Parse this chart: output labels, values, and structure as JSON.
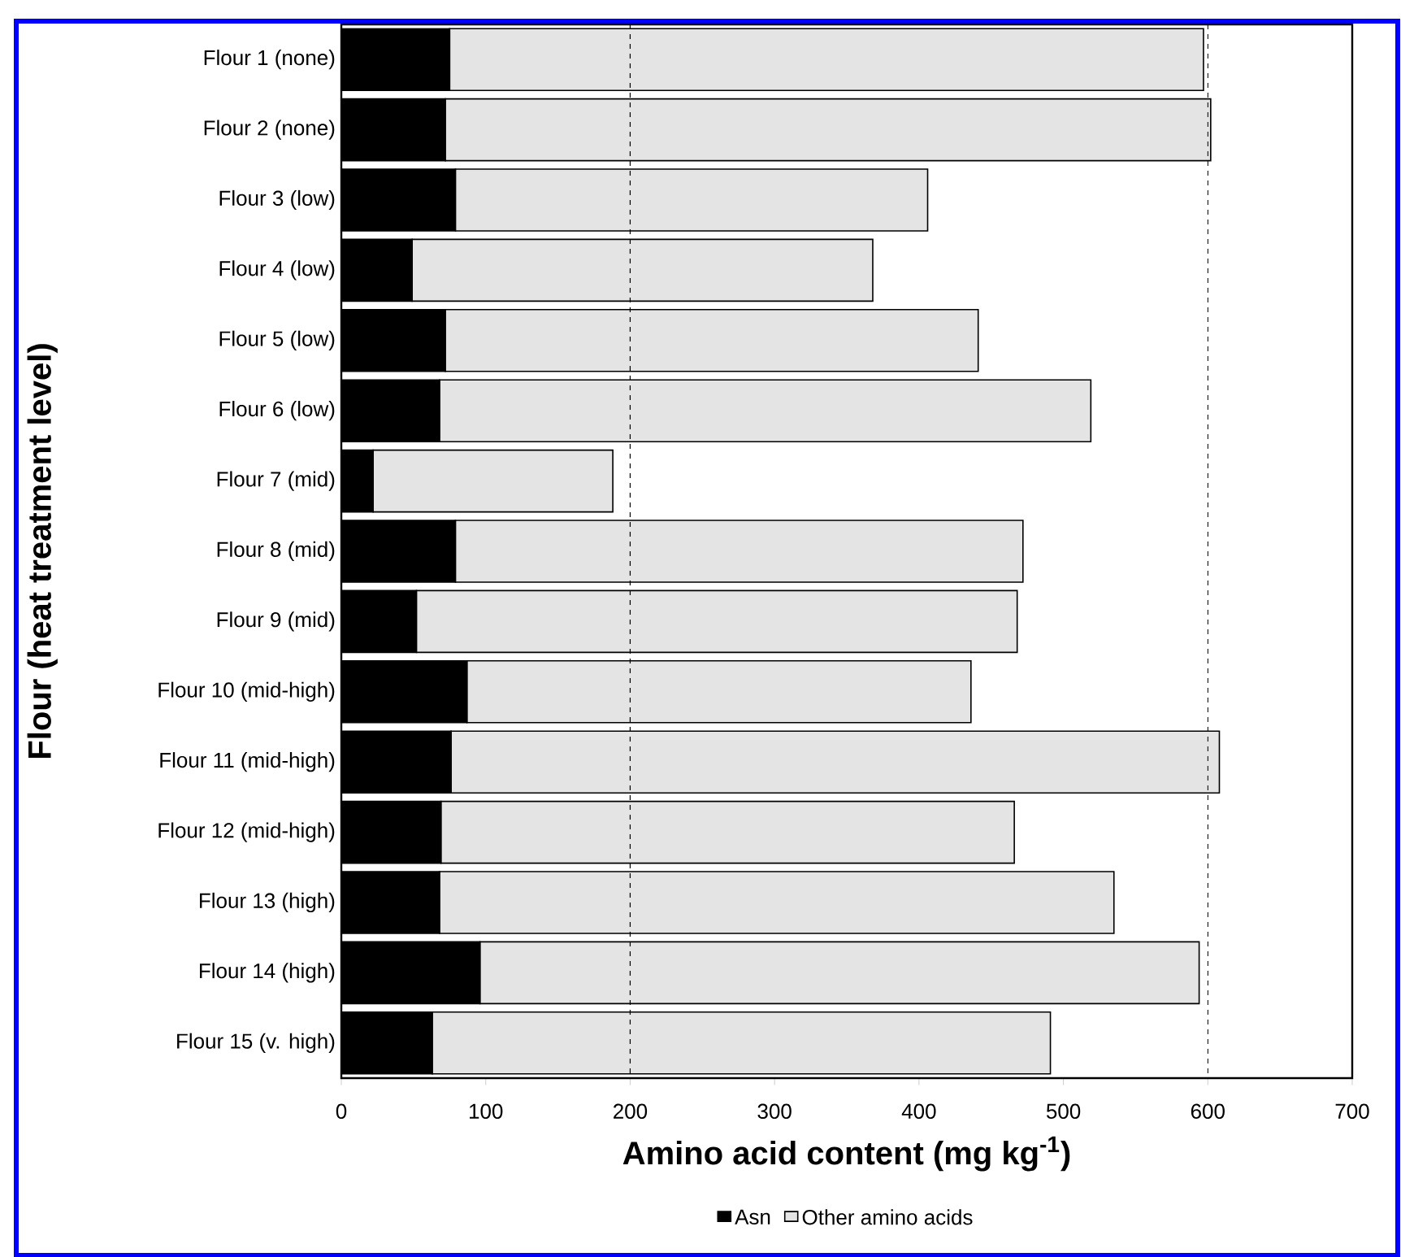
{
  "chart_data": {
    "type": "bar",
    "orientation": "horizontal",
    "stacked": true,
    "categories": [
      "Flour 1 (none)",
      "Flour 2 (none)",
      "Flour 3 (low)",
      "Flour 4 (low)",
      "Flour 5 (low)",
      "Flour 6 (low)",
      "Flour 7 (mid)",
      "Flour 8 (mid)",
      "Flour 9 (mid)",
      "Flour 10 (mid-high)",
      "Flour 11 (mid-high)",
      "Flour 12 (mid-high)",
      "Flour 13 (high)",
      "Flour 14 (high)",
      "Flour 15 (v. high)"
    ],
    "series": [
      {
        "name": "Asn",
        "color": "#000000",
        "values": [
          75,
          72,
          79,
          49,
          72,
          68,
          22,
          79,
          52,
          87,
          76,
          69,
          68,
          96,
          63
        ]
      },
      {
        "name": "Other amino acids",
        "color": "#e4e4e4",
        "values": [
          522,
          530,
          327,
          319,
          369,
          451,
          166,
          393,
          416,
          349,
          532,
          397,
          467,
          498,
          428
        ]
      }
    ],
    "xlim": [
      0,
      700
    ],
    "xticks": [
      0,
      100,
      200,
      300,
      400,
      500,
      600,
      700
    ],
    "xlabel": "Amino acid content (mg kg$^{-1}$)",
    "ylabel": "Flour (heat treatment level)",
    "ref_lines": [
      {
        "axis": "x",
        "value": 200,
        "line_style": "dashed"
      },
      {
        "axis": "x",
        "value": 600,
        "line_style": "dashed"
      }
    ],
    "legend": "bottom"
  }
}
